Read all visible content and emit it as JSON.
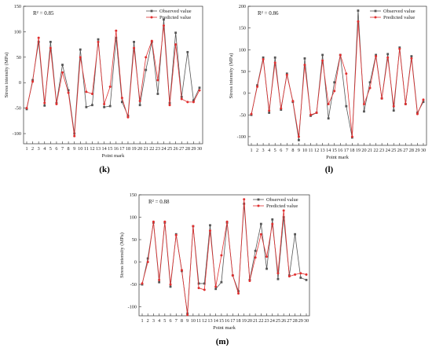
{
  "chart_data": [
    {
      "type": "line",
      "panel_label": "k",
      "r2_label": "R² = 0.85",
      "xlabel": "Point mark",
      "ylabel": "Stress intensity (MPa)",
      "ylim": [
        -120,
        150
      ],
      "yticks": [
        -100,
        -50,
        0,
        50,
        100,
        150
      ],
      "xlim": [
        1,
        30
      ],
      "legend": "top-right",
      "x": [
        1,
        2,
        3,
        4,
        5,
        6,
        7,
        8,
        9,
        10,
        11,
        12,
        13,
        14,
        15,
        16,
        17,
        18,
        19,
        20,
        21,
        22,
        23,
        24,
        25,
        26,
        27,
        28,
        29,
        30
      ],
      "series": [
        {
          "name": "Observed value",
          "color": "#555555",
          "values": [
            -52,
            5,
            80,
            -45,
            80,
            -40,
            35,
            -15,
            -100,
            65,
            -48,
            -44,
            85,
            -48,
            -46,
            88,
            -38,
            -65,
            80,
            -44,
            25,
            80,
            -22,
            124,
            -40,
            98,
            -28,
            60,
            -35,
            -10
          ]
        },
        {
          "name": "Predicted value",
          "color": "#e03030",
          "values": [
            -50,
            2,
            88,
            -40,
            68,
            -42,
            20,
            -20,
            -105,
            50,
            -18,
            -22,
            80,
            -42,
            -8,
            102,
            -30,
            -68,
            68,
            -36,
            50,
            82,
            5,
            112,
            -44,
            75,
            -32,
            -38,
            -38,
            -15
          ]
        }
      ]
    },
    {
      "type": "line",
      "panel_label": "l",
      "r2_label": "R² = 0.86",
      "xlabel": "Point mark",
      "ylabel": "Stress intensity (MPa)",
      "ylim": [
        -120,
        200
      ],
      "yticks": [
        -100,
        -50,
        0,
        50,
        100,
        150,
        200
      ],
      "xlim": [
        1,
        30
      ],
      "legend": "top-right",
      "x": [
        1,
        2,
        3,
        4,
        5,
        6,
        7,
        8,
        9,
        10,
        11,
        12,
        13,
        14,
        15,
        16,
        17,
        18,
        19,
        20,
        21,
        22,
        23,
        24,
        25,
        26,
        27,
        28,
        29,
        30
      ],
      "series": [
        {
          "name": "Observed value",
          "color": "#555555",
          "values": [
            -50,
            18,
            82,
            -45,
            82,
            -38,
            45,
            -20,
            -108,
            80,
            -52,
            -45,
            88,
            -58,
            25,
            88,
            -30,
            -102,
            190,
            -42,
            25,
            88,
            -12,
            90,
            -40,
            105,
            -25,
            85,
            -45,
            -20
          ]
        },
        {
          "name": "Predicted value",
          "color": "#e03030",
          "values": [
            -48,
            15,
            78,
            -40,
            70,
            -35,
            42,
            -18,
            -100,
            65,
            -50,
            -45,
            75,
            -25,
            5,
            88,
            45,
            -100,
            165,
            -25,
            12,
            85,
            -12,
            82,
            -30,
            102,
            -25,
            80,
            -48,
            -15
          ]
        }
      ]
    },
    {
      "type": "line",
      "panel_label": "m",
      "r2_label": "R² = 0.88",
      "xlabel": "Point mark",
      "ylabel": "Stress intensity (MPa)",
      "ylim": [
        -120,
        150
      ],
      "yticks": [
        -100,
        -50,
        0,
        50,
        100,
        150
      ],
      "xlim": [
        1,
        30
      ],
      "legend": "top-right",
      "x": [
        1,
        2,
        3,
        4,
        5,
        6,
        7,
        8,
        9,
        10,
        11,
        12,
        13,
        14,
        15,
        16,
        17,
        18,
        19,
        20,
        21,
        22,
        23,
        24,
        25,
        26,
        27,
        28,
        29,
        30
      ],
      "series": [
        {
          "name": "Observed value",
          "color": "#555555",
          "values": [
            -50,
            8,
            88,
            -45,
            88,
            -55,
            62,
            -20,
            -115,
            80,
            -48,
            -48,
            82,
            -60,
            -45,
            88,
            -30,
            -65,
            130,
            -40,
            25,
            85,
            -15,
            95,
            -38,
            100,
            -30,
            62,
            -35,
            -40
          ]
        },
        {
          "name": "Predicted value",
          "color": "#e03030",
          "values": [
            -48,
            0,
            90,
            -40,
            90,
            -50,
            60,
            -18,
            -118,
            80,
            -58,
            -62,
            70,
            -55,
            15,
            90,
            -30,
            -70,
            140,
            -42,
            10,
            62,
            12,
            85,
            -25,
            115,
            -32,
            -28,
            -25,
            -28
          ]
        }
      ]
    }
  ]
}
